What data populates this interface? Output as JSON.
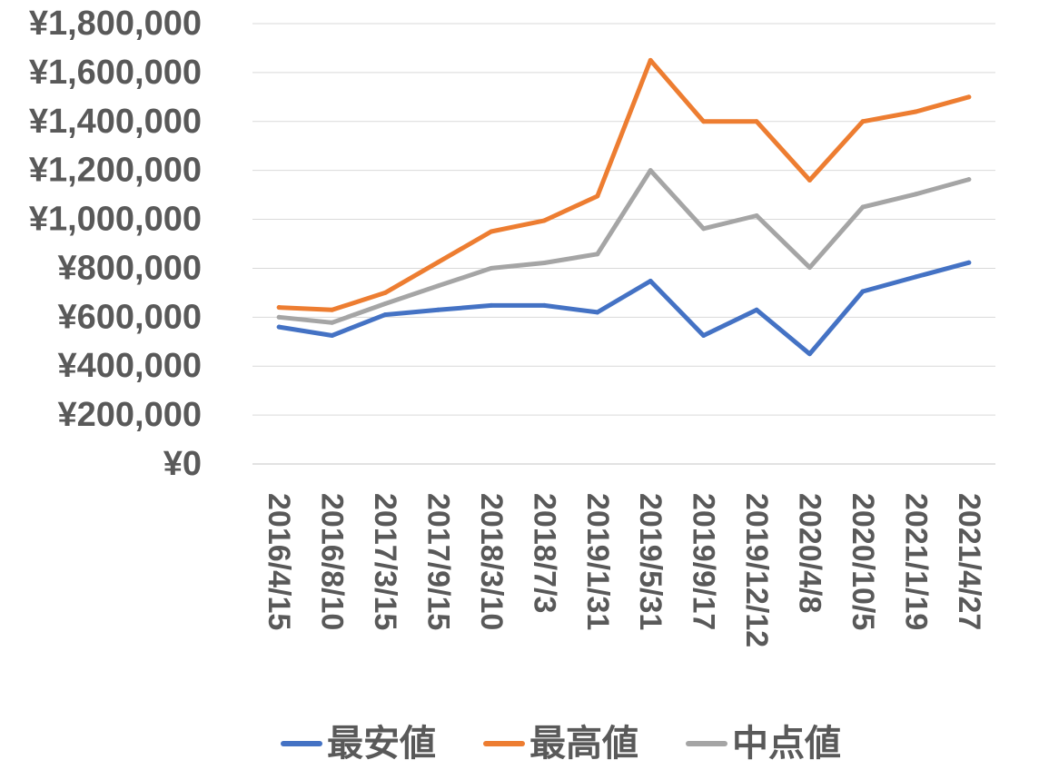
{
  "chart_data": {
    "type": "line",
    "title": "",
    "xlabel": "",
    "ylabel": "",
    "ylim": [
      0,
      1800000
    ],
    "yticks": [
      0,
      200000,
      400000,
      600000,
      800000,
      1000000,
      1200000,
      1400000,
      1600000,
      1800000
    ],
    "ytick_labels": [
      "¥0",
      "¥200,000",
      "¥400,000",
      "¥600,000",
      "¥800,000",
      "¥1,000,000",
      "¥1,200,000",
      "¥1,400,000",
      "¥1,600,000",
      "¥1,800,000"
    ],
    "categories": [
      "2016/4/15",
      "2016/8/10",
      "2017/3/15",
      "2017/9/15",
      "2018/3/10",
      "2018/7/3",
      "2019/1/31",
      "2019/5/31",
      "2019/9/17",
      "2019/12/12",
      "2020/4/8",
      "2020/10/5",
      "2021/1/19",
      "2021/4/27"
    ],
    "grid": true,
    "legend_position": "bottom",
    "series": [
      {
        "name": "最安値",
        "color": "#4472C4",
        "values": [
          560000,
          525000,
          610000,
          630000,
          648000,
          648000,
          620000,
          748000,
          525000,
          630000,
          450000,
          705000,
          765000,
          823000
        ]
      },
      {
        "name": "最高値",
        "color": "#ED7D31",
        "values": [
          640000,
          630000,
          700000,
          825000,
          950000,
          995000,
          1095000,
          1650000,
          1400000,
          1400000,
          1160000,
          1400000,
          1440000,
          1500000
        ]
      },
      {
        "name": "中点値",
        "color": "#A5A5A5",
        "values": [
          600000,
          578000,
          655000,
          728000,
          800000,
          822000,
          858000,
          1200000,
          962000,
          1015000,
          803000,
          1050000,
          1103000,
          1163000
        ]
      }
    ]
  }
}
